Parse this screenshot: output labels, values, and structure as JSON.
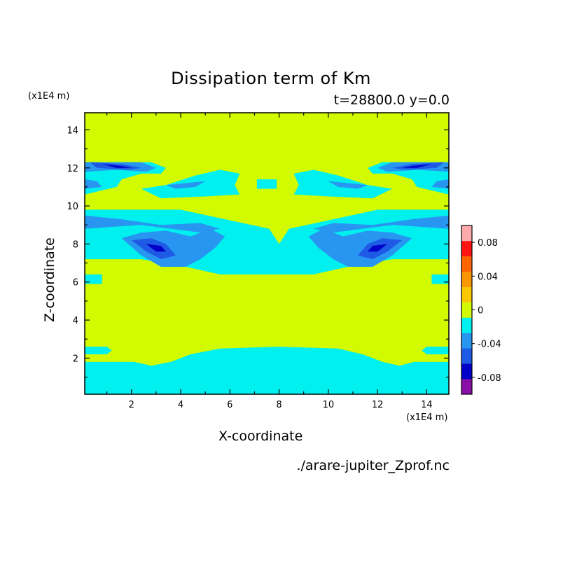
{
  "chart_data": {
    "type": "heatmap",
    "title": "Dissipation term of Km",
    "subtitle": "t=28800.0 y=0.0",
    "xlabel": "X-coordinate",
    "ylabel": "Z-coordinate",
    "x_unit": "(x1E4 m)",
    "y_unit": "(x1E4 m)",
    "xlim": [
      0.1,
      14.9
    ],
    "ylim": [
      0.1,
      14.9
    ],
    "x_ticks": [
      2,
      4,
      6,
      8,
      10,
      12,
      14
    ],
    "y_ticks": [
      2,
      4,
      6,
      8,
      10,
      12,
      14
    ],
    "colorbar": {
      "levels": [
        -0.1,
        -0.08,
        -0.06,
        -0.04,
        -0.02,
        0,
        0.02,
        0.04,
        0.06,
        0.08,
        0.1
      ],
      "colors": [
        "#8a0fa8",
        "#0000c8",
        "#1e5ae6",
        "#2896f0",
        "#00f0f0",
        "#d2fa00",
        "#fac800",
        "#fa9600",
        "#ff6400",
        "#ff1414",
        "#ffaaaa"
      ],
      "tick_labels": [
        "-0.08",
        "-0.04",
        "0",
        "0.04",
        "0.08"
      ],
      "tick_values": [
        -0.08,
        -0.04,
        0,
        0.04,
        0.08
      ]
    },
    "regions": [
      {
        "level": -0.01,
        "points": [
          [
            0.1,
            0.1
          ],
          [
            14.9,
            0.1
          ],
          [
            14.9,
            1.8
          ],
          [
            13.5,
            1.8
          ],
          [
            12.9,
            1.6
          ],
          [
            12.2,
            1.8
          ],
          [
            11.4,
            2.2
          ],
          [
            10.4,
            2.5
          ],
          [
            8,
            2.6
          ],
          [
            5.6,
            2.5
          ],
          [
            4.4,
            2.2
          ],
          [
            3.6,
            1.8
          ],
          [
            2.8,
            1.6
          ],
          [
            2.1,
            1.8
          ],
          [
            0.1,
            1.8
          ]
        ]
      },
      {
        "level": -0.01,
        "points": [
          [
            0.1,
            2.6
          ],
          [
            1.0,
            2.6
          ],
          [
            1.2,
            2.4
          ],
          [
            1.0,
            2.2
          ],
          [
            0.1,
            2.2
          ]
        ]
      },
      {
        "level": -0.01,
        "points": [
          [
            14.9,
            2.6
          ],
          [
            14.0,
            2.6
          ],
          [
            13.8,
            2.4
          ],
          [
            14.0,
            2.2
          ],
          [
            14.9,
            2.2
          ]
        ]
      },
      {
        "level": -0.01,
        "points": [
          [
            0.1,
            6.4
          ],
          [
            0.8,
            6.4
          ],
          [
            0.8,
            5.9
          ],
          [
            0.1,
            5.9
          ]
        ]
      },
      {
        "level": -0.01,
        "points": [
          [
            14.9,
            6.4
          ],
          [
            14.2,
            6.4
          ],
          [
            14.2,
            5.9
          ],
          [
            14.9,
            5.9
          ]
        ]
      },
      {
        "level": -0.01,
        "points": [
          [
            0.1,
            7.2
          ],
          [
            2.4,
            7.2
          ],
          [
            4.2,
            6.8
          ],
          [
            5.6,
            6.4
          ],
          [
            9.4,
            6.4
          ],
          [
            10.8,
            6.8
          ],
          [
            12.6,
            7.2
          ],
          [
            14.9,
            7.2
          ],
          [
            14.9,
            9.8
          ],
          [
            12.0,
            9.8
          ],
          [
            10.2,
            9.3
          ],
          [
            8.4,
            8.8
          ],
          [
            8.0,
            8.0
          ],
          [
            7.6,
            8.8
          ],
          [
            5.8,
            9.3
          ],
          [
            4.0,
            9.8
          ],
          [
            0.1,
            9.8
          ]
        ]
      },
      {
        "level": -0.01,
        "points": [
          [
            0.1,
            12.3
          ],
          [
            2.8,
            12.3
          ],
          [
            3.4,
            12.0
          ],
          [
            3.2,
            11.7
          ],
          [
            2.4,
            11.7
          ],
          [
            1.6,
            11.4
          ],
          [
            1.4,
            11.0
          ],
          [
            0.1,
            10.6
          ]
        ]
      },
      {
        "level": -0.01,
        "points": [
          [
            14.9,
            12.3
          ],
          [
            12.2,
            12.3
          ],
          [
            11.6,
            12.0
          ],
          [
            11.8,
            11.7
          ],
          [
            12.6,
            11.7
          ],
          [
            13.4,
            11.4
          ],
          [
            13.6,
            11.0
          ],
          [
            14.9,
            10.6
          ]
        ]
      },
      {
        "level": -0.01,
        "points": [
          [
            2.4,
            10.9
          ],
          [
            3.4,
            11.1
          ],
          [
            4.6,
            11.6
          ],
          [
            5.6,
            11.9
          ],
          [
            6.4,
            11.7
          ],
          [
            6.2,
            11.1
          ],
          [
            6.4,
            10.6
          ],
          [
            5.0,
            10.5
          ],
          [
            3.2,
            10.4
          ]
        ]
      },
      {
        "level": -0.01,
        "points": [
          [
            12.6,
            10.9
          ],
          [
            11.6,
            11.1
          ],
          [
            10.4,
            11.6
          ],
          [
            9.4,
            11.9
          ],
          [
            8.6,
            11.7
          ],
          [
            8.8,
            11.1
          ],
          [
            8.6,
            10.6
          ],
          [
            10.0,
            10.5
          ],
          [
            11.8,
            10.4
          ]
        ]
      },
      {
        "level": -0.01,
        "points": [
          [
            7.1,
            11.4
          ],
          [
            7.9,
            11.4
          ],
          [
            7.9,
            10.9
          ],
          [
            7.1,
            10.9
          ]
        ]
      },
      {
        "level": -0.03,
        "points": [
          [
            0.1,
            9.5
          ],
          [
            1.6,
            9.3
          ],
          [
            3.2,
            9.0
          ],
          [
            4.8,
            9.1
          ],
          [
            5.6,
            8.8
          ],
          [
            4.8,
            8.6
          ],
          [
            3.6,
            8.8
          ],
          [
            2.4,
            9.0
          ],
          [
            1.2,
            8.9
          ],
          [
            0.1,
            8.8
          ]
        ]
      },
      {
        "level": -0.03,
        "points": [
          [
            14.9,
            9.5
          ],
          [
            13.4,
            9.3
          ],
          [
            11.8,
            9.0
          ],
          [
            10.2,
            9.1
          ],
          [
            9.4,
            8.8
          ],
          [
            10.2,
            8.6
          ],
          [
            11.4,
            8.8
          ],
          [
            12.6,
            9.0
          ],
          [
            13.8,
            8.9
          ],
          [
            14.9,
            8.8
          ]
        ]
      },
      {
        "level": -0.03,
        "points": [
          [
            1.6,
            8.3
          ],
          [
            2.4,
            8.6
          ],
          [
            3.4,
            8.7
          ],
          [
            4.4,
            8.4
          ],
          [
            5.2,
            8.8
          ],
          [
            5.8,
            8.4
          ],
          [
            5.4,
            7.8
          ],
          [
            4.8,
            7.2
          ],
          [
            4.2,
            6.8
          ],
          [
            3.2,
            6.8
          ],
          [
            2.4,
            7.4
          ]
        ]
      },
      {
        "level": -0.03,
        "points": [
          [
            13.4,
            8.3
          ],
          [
            12.6,
            8.6
          ],
          [
            11.6,
            8.7
          ],
          [
            10.6,
            8.4
          ],
          [
            9.8,
            8.8
          ],
          [
            9.2,
            8.4
          ],
          [
            9.6,
            7.8
          ],
          [
            10.2,
            7.2
          ],
          [
            10.8,
            6.8
          ],
          [
            11.8,
            6.8
          ],
          [
            12.6,
            7.4
          ]
        ]
      },
      {
        "level": -0.03,
        "points": [
          [
            0.1,
            12.3
          ],
          [
            2.4,
            12.3
          ],
          [
            3.0,
            12.0
          ],
          [
            2.6,
            11.8
          ],
          [
            1.4,
            11.9
          ],
          [
            0.1,
            11.8
          ]
        ]
      },
      {
        "level": -0.03,
        "points": [
          [
            14.9,
            12.3
          ],
          [
            12.6,
            12.3
          ],
          [
            12.0,
            12.0
          ],
          [
            12.4,
            11.8
          ],
          [
            13.6,
            11.9
          ],
          [
            14.9,
            11.8
          ]
        ]
      },
      {
        "level": -0.03,
        "points": [
          [
            0.1,
            11.4
          ],
          [
            0.6,
            11.3
          ],
          [
            0.8,
            11.0
          ],
          [
            0.1,
            10.9
          ]
        ]
      },
      {
        "level": -0.03,
        "points": [
          [
            14.9,
            11.4
          ],
          [
            14.4,
            11.3
          ],
          [
            14.2,
            11.0
          ],
          [
            14.9,
            10.9
          ]
        ]
      },
      {
        "level": -0.03,
        "points": [
          [
            3.4,
            11.1
          ],
          [
            4.2,
            11.2
          ],
          [
            5.0,
            11.3
          ],
          [
            4.6,
            11.0
          ],
          [
            3.8,
            10.9
          ]
        ]
      },
      {
        "level": -0.03,
        "points": [
          [
            11.6,
            11.1
          ],
          [
            10.8,
            11.2
          ],
          [
            10.0,
            11.3
          ],
          [
            10.4,
            11.0
          ],
          [
            11.2,
            10.9
          ]
        ]
      },
      {
        "level": -0.05,
        "points": [
          [
            2.0,
            8.2
          ],
          [
            2.8,
            8.3
          ],
          [
            3.4,
            8.0
          ],
          [
            3.8,
            7.4
          ],
          [
            3.2,
            7.2
          ],
          [
            2.6,
            7.6
          ]
        ]
      },
      {
        "level": -0.05,
        "points": [
          [
            13.0,
            8.2
          ],
          [
            12.2,
            8.3
          ],
          [
            11.6,
            8.0
          ],
          [
            11.2,
            7.4
          ],
          [
            11.8,
            7.2
          ],
          [
            12.4,
            7.6
          ]
        ]
      },
      {
        "level": -0.05,
        "points": [
          [
            0.3,
            12.3
          ],
          [
            1.6,
            12.2
          ],
          [
            2.4,
            12.0
          ],
          [
            1.8,
            11.9
          ],
          [
            0.6,
            12.0
          ]
        ]
      },
      {
        "level": -0.05,
        "points": [
          [
            14.7,
            12.3
          ],
          [
            13.4,
            12.2
          ],
          [
            12.6,
            12.0
          ],
          [
            13.2,
            11.9
          ],
          [
            14.4,
            12.0
          ]
        ]
      },
      {
        "level": -0.07,
        "points": [
          [
            2.6,
            8.0
          ],
          [
            3.2,
            7.9
          ],
          [
            3.4,
            7.6
          ],
          [
            3.0,
            7.6
          ]
        ]
      },
      {
        "level": -0.07,
        "points": [
          [
            12.4,
            8.0
          ],
          [
            11.8,
            7.9
          ],
          [
            11.6,
            7.6
          ],
          [
            12.0,
            7.6
          ]
        ]
      },
      {
        "level": -0.07,
        "points": [
          [
            0.8,
            12.2
          ],
          [
            1.6,
            12.1
          ],
          [
            2.0,
            12.0
          ],
          [
            1.4,
            12.0
          ]
        ]
      },
      {
        "level": -0.07,
        "points": [
          [
            14.2,
            12.2
          ],
          [
            13.4,
            12.1
          ],
          [
            13.0,
            12.0
          ],
          [
            13.6,
            12.0
          ]
        ]
      }
    ]
  },
  "labels": {
    "source_file": "./arare-jupiter_Zprof.nc"
  }
}
